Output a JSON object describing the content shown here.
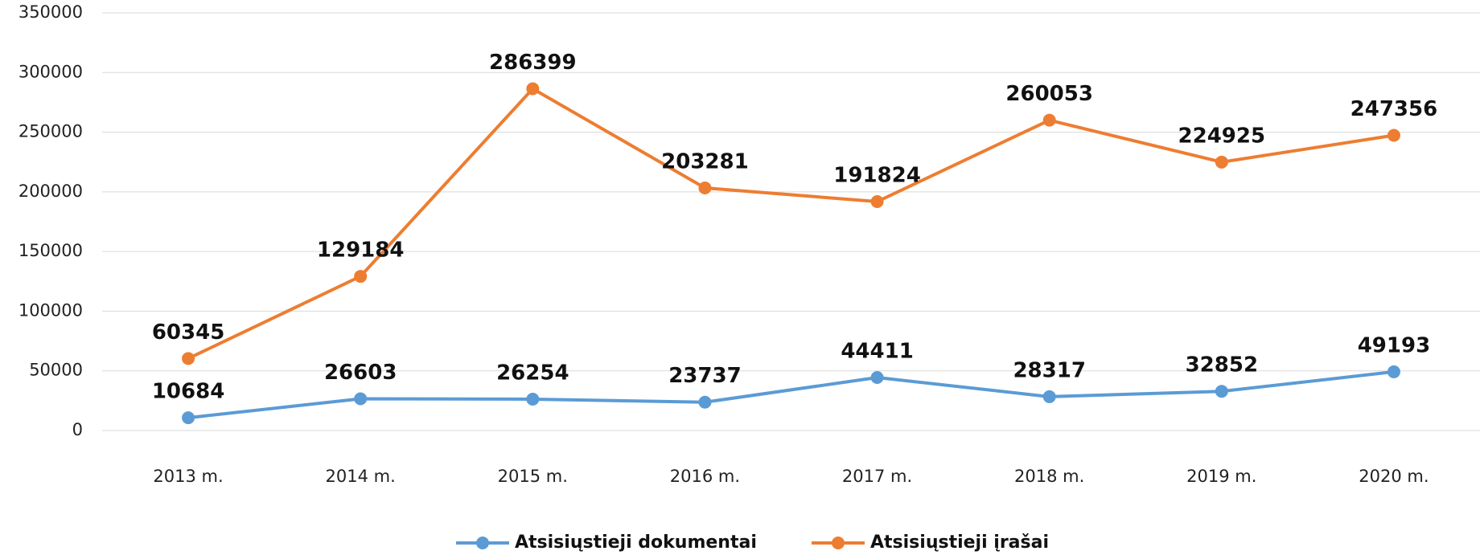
{
  "chart_data": {
    "type": "line",
    "categories": [
      "2013 m.",
      "2014 m.",
      "2015 m.",
      "2016 m.",
      "2017 m.",
      "2018 m.",
      "2019 m.",
      "2020 m."
    ],
    "series": [
      {
        "name": "Atsisiųstieji dokumentai",
        "color": "#5b9bd5",
        "values": [
          10684,
          26603,
          26254,
          23737,
          44411,
          28317,
          32852,
          49193
        ]
      },
      {
        "name": "Atsisiųstieji įrašai",
        "color": "#ed7d31",
        "values": [
          60345,
          129184,
          286399,
          203281,
          191824,
          260053,
          224925,
          247356
        ]
      }
    ],
    "ylim": [
      0,
      350000
    ],
    "yticks": [
      0,
      50000,
      100000,
      150000,
      200000,
      250000,
      300000,
      350000
    ],
    "grid": true,
    "legend": "bottom"
  }
}
